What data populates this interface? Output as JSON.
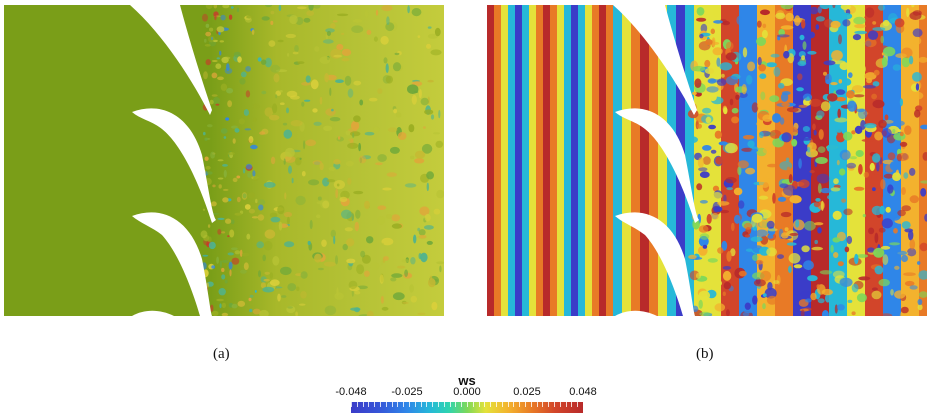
{
  "figure": {
    "panels": [
      {
        "caption": "(a)",
        "description_colour_base": "#7a9e18"
      },
      {
        "caption": "(b)"
      }
    ],
    "colorbar": {
      "title": "ws",
      "ticks": [
        "-0.048",
        "-0.025",
        "0.000",
        "0.025",
        "0.048"
      ],
      "range": [
        -0.048,
        0.048
      ],
      "colors": [
        "#3b3cc8",
        "#2f86e8",
        "#26b8d8",
        "#7cd85a",
        "#e4e23a",
        "#f3b22e",
        "#e87a26",
        "#d2452a",
        "#b82a2a"
      ]
    }
  }
}
